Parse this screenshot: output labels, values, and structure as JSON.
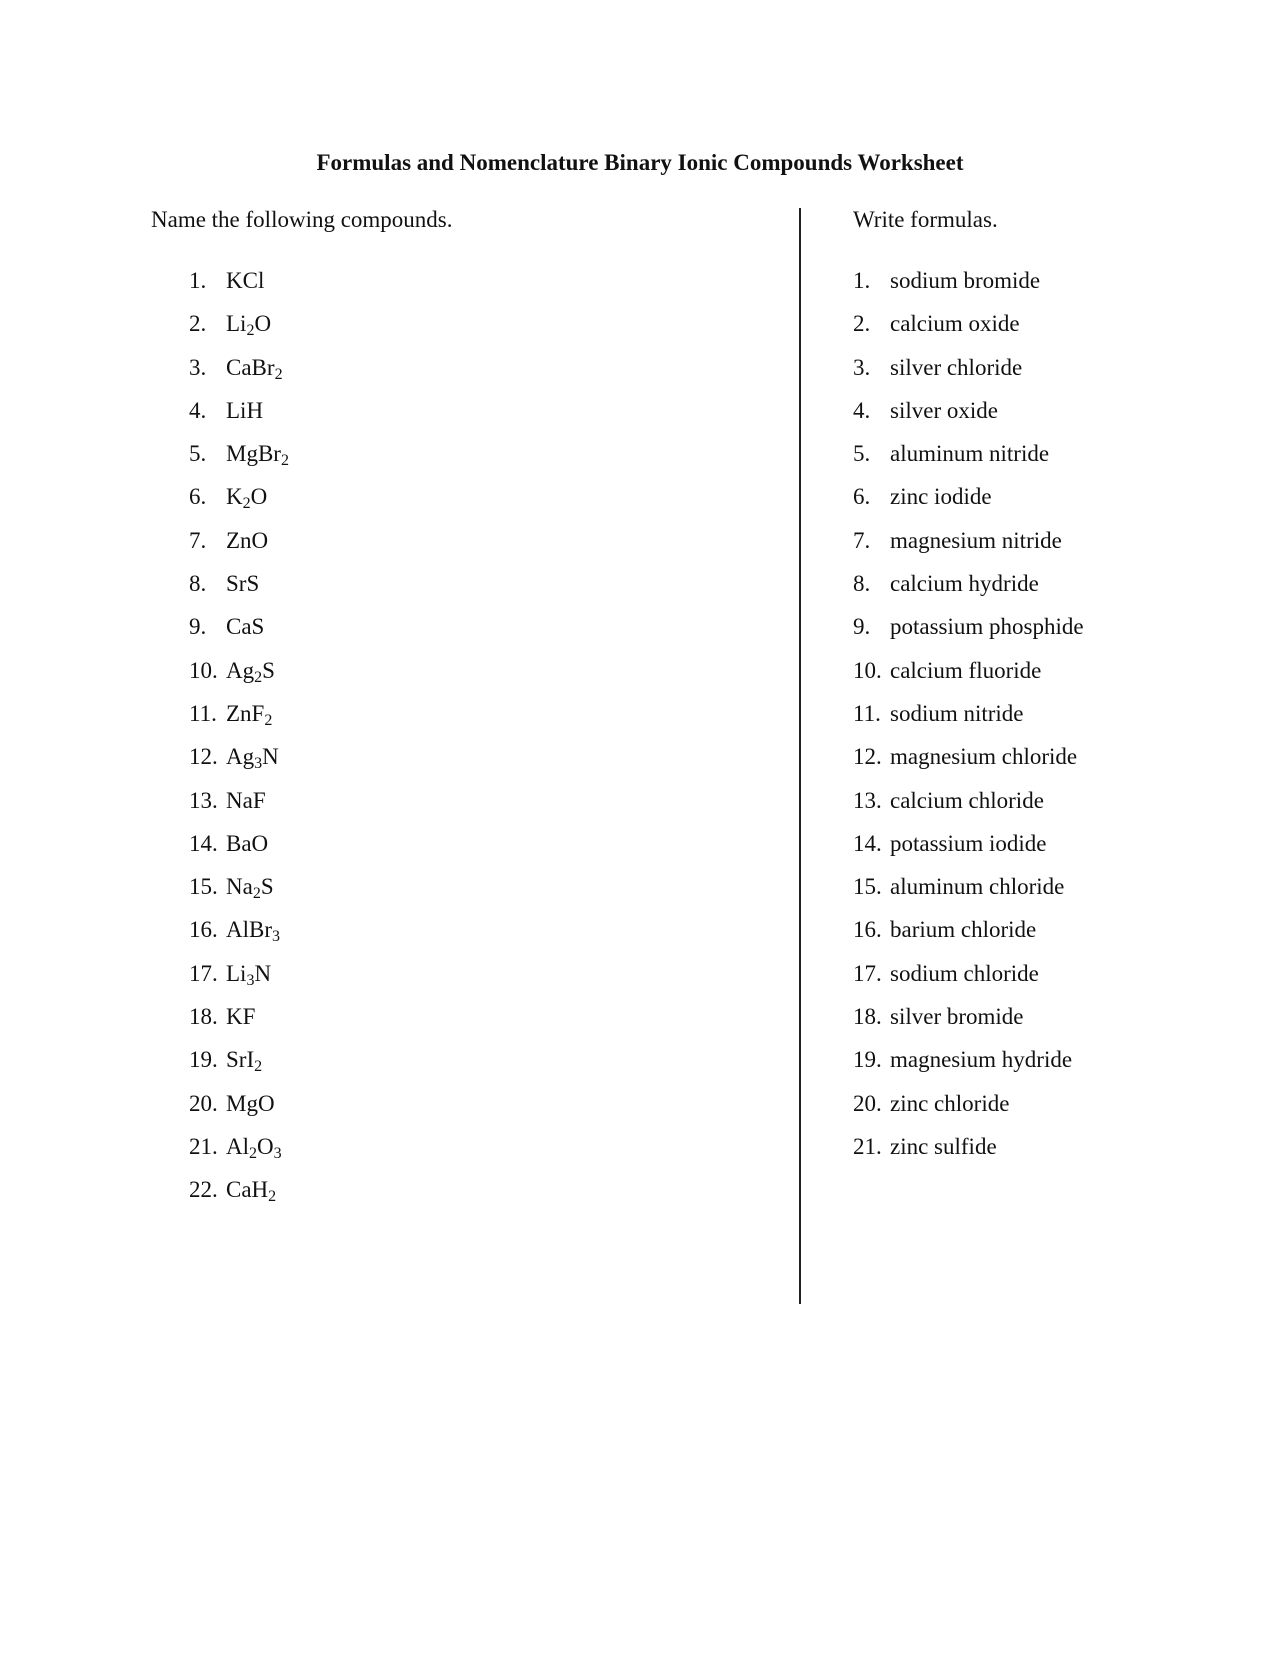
{
  "title": "Formulas and Nomenclature Binary Ionic Compounds Worksheet",
  "left": {
    "heading": "Name the following compounds.",
    "items": [
      {
        "num": "1.",
        "parts": [
          {
            "t": "KCl"
          }
        ]
      },
      {
        "num": "2.",
        "parts": [
          {
            "t": "Li"
          },
          {
            "s": "2"
          },
          {
            "t": "O"
          }
        ]
      },
      {
        "num": "3.",
        "parts": [
          {
            "t": "CaBr"
          },
          {
            "s": "2"
          }
        ]
      },
      {
        "num": "4.",
        "parts": [
          {
            "t": "LiH"
          }
        ]
      },
      {
        "num": "5.",
        "parts": [
          {
            "t": "MgBr"
          },
          {
            "s": "2"
          }
        ]
      },
      {
        "num": "6.",
        "parts": [
          {
            "t": "K"
          },
          {
            "s": "2"
          },
          {
            "t": "O"
          }
        ]
      },
      {
        "num": "7.",
        "parts": [
          {
            "t": "ZnO"
          }
        ]
      },
      {
        "num": "8.",
        "parts": [
          {
            "t": "SrS"
          }
        ]
      },
      {
        "num": "9.",
        "parts": [
          {
            "t": "CaS"
          }
        ]
      },
      {
        "num": "10.",
        "parts": [
          {
            "t": "Ag"
          },
          {
            "s": "2"
          },
          {
            "t": "S"
          }
        ]
      },
      {
        "num": "11.",
        "parts": [
          {
            "t": "ZnF"
          },
          {
            "s": "2"
          }
        ]
      },
      {
        "num": "12.",
        "parts": [
          {
            "t": "Ag"
          },
          {
            "s": "3"
          },
          {
            "t": "N"
          }
        ]
      },
      {
        "num": "13.",
        "parts": [
          {
            "t": "NaF"
          }
        ]
      },
      {
        "num": "14.",
        "parts": [
          {
            "t": "BaO"
          }
        ]
      },
      {
        "num": "15.",
        "parts": [
          {
            "t": "Na"
          },
          {
            "s": "2"
          },
          {
            "t": "S"
          }
        ]
      },
      {
        "num": "16.",
        "parts": [
          {
            "t": "AlBr"
          },
          {
            "s": "3"
          }
        ]
      },
      {
        "num": "17.",
        "parts": [
          {
            "t": "Li"
          },
          {
            "s": "3"
          },
          {
            "t": "N"
          }
        ]
      },
      {
        "num": "18.",
        "parts": [
          {
            "t": "KF"
          }
        ]
      },
      {
        "num": "19.",
        "parts": [
          {
            "t": "SrI"
          },
          {
            "s": "2"
          }
        ]
      },
      {
        "num": "20.",
        "parts": [
          {
            "t": "MgO"
          }
        ]
      },
      {
        "num": "21.",
        "parts": [
          {
            "t": "Al"
          },
          {
            "s": "2"
          },
          {
            "t": "O"
          },
          {
            "s": "3"
          }
        ]
      },
      {
        "num": "22.",
        "parts": [
          {
            "t": "CaH"
          },
          {
            "s": "2"
          }
        ]
      }
    ]
  },
  "right": {
    "heading": "Write formulas.",
    "items": [
      {
        "num": "1.",
        "text": "sodium bromide"
      },
      {
        "num": "2.",
        "text": "calcium oxide"
      },
      {
        "num": "3.",
        "text": "silver chloride"
      },
      {
        "num": "4.",
        "text": "silver oxide"
      },
      {
        "num": "5.",
        "text": "aluminum nitride"
      },
      {
        "num": "6.",
        "text": "zinc iodide"
      },
      {
        "num": "7.",
        "text": "magnesium nitride"
      },
      {
        "num": "8.",
        "text": "calcium hydride"
      },
      {
        "num": "9.",
        "text": "potassium phosphide"
      },
      {
        "num": "10.",
        "text": "calcium fluoride"
      },
      {
        "num": "11.",
        "text": "sodium nitride"
      },
      {
        "num": "12.",
        "text": "magnesium chloride"
      },
      {
        "num": "13.",
        "text": "calcium chloride"
      },
      {
        "num": "14.",
        "text": "potassium iodide"
      },
      {
        "num": "15.",
        "text": "aluminum chloride"
      },
      {
        "num": "16.",
        "text": "barium chloride"
      },
      {
        "num": "17.",
        "text": "sodium chloride"
      },
      {
        "num": "18.",
        "text": "silver bromide"
      },
      {
        "num": "19.",
        "text": "magnesium hydride"
      },
      {
        "num": "20.",
        "text": "zinc chloride"
      },
      {
        "num": "21.",
        "text": "zinc sulfide"
      }
    ]
  }
}
